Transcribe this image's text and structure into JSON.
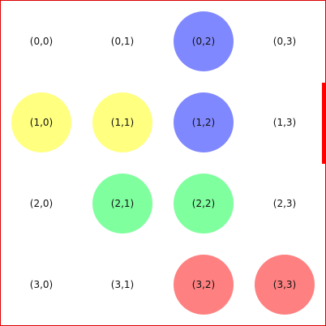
{
  "grid": {
    "colors": {
      "yellow": "#ffff80",
      "blue": "#8088ff",
      "green": "#80ff9f",
      "red": "#ff8080",
      "border": "#dd0000",
      "scrollbar": "#ff0000"
    },
    "cells": [
      {
        "label": "(0,0)",
        "piece": null
      },
      {
        "label": "(0,1)",
        "piece": null
      },
      {
        "label": "(0,2)",
        "piece": "blue"
      },
      {
        "label": "(0,3)",
        "piece": null
      },
      {
        "label": "(1,0)",
        "piece": "yellow"
      },
      {
        "label": "(1,1)",
        "piece": "yellow"
      },
      {
        "label": "(1,2)",
        "piece": "blue"
      },
      {
        "label": "(1,3)",
        "piece": null
      },
      {
        "label": "(2,0)",
        "piece": null
      },
      {
        "label": "(2,1)",
        "piece": "green"
      },
      {
        "label": "(2,2)",
        "piece": "green"
      },
      {
        "label": "(2,3)",
        "piece": null
      },
      {
        "label": "(3,0)",
        "piece": null
      },
      {
        "label": "(3,1)",
        "piece": null
      },
      {
        "label": "(3,2)",
        "piece": "red"
      },
      {
        "label": "(3,3)",
        "piece": "red"
      }
    ]
  }
}
